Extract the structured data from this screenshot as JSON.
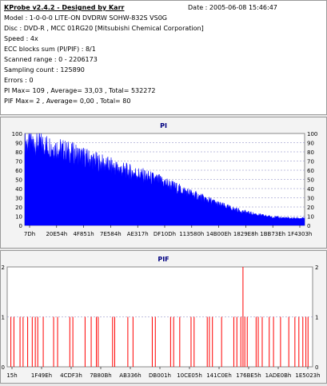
{
  "header": {
    "title": "KProbe v2.4.2 - Designed by Karr",
    "date": "Date : 2005-06-08 15:46:47",
    "lines": [
      "Model : 1-0-0-0 LITE-ON DVDRW SOHW-832S  VS0G",
      "Disc : DVD-R , MCC 01RG20  [Mitsubishi Chemical Corporation]",
      "Speed : 4x",
      "ECC blocks sum (PI/PIF) : 8/1",
      "Scanned range : 0 - 2206173",
      "Sampling count : 125890",
      "Errors : 0",
      "PI Max= 109 , Average= 33,03 , Total= 532272",
      "PIF Max= 2 , Average= 0,00 , Total= 80"
    ]
  },
  "chart_data": [
    {
      "type": "area",
      "title": "PI",
      "ylim": [
        0,
        100
      ],
      "y_ticks": [
        0,
        10,
        20,
        30,
        40,
        50,
        60,
        70,
        80,
        90,
        100
      ],
      "x_tick_labels": [
        "7Dh",
        "20E54h",
        "4F851h",
        "7E584h",
        "AE317h",
        "DF10Dh",
        "113580h",
        "14B00Eh",
        "1829E8h",
        "1BB73Eh",
        "1F4303h"
      ],
      "series_color": "#0000ff",
      "envelope": [
        {
          "x": 0.0,
          "y": 93
        },
        {
          "x": 0.05,
          "y": 92
        },
        {
          "x": 0.1,
          "y": 88
        },
        {
          "x": 0.15,
          "y": 83
        },
        {
          "x": 0.2,
          "y": 78
        },
        {
          "x": 0.25,
          "y": 72
        },
        {
          "x": 0.3,
          "y": 67
        },
        {
          "x": 0.35,
          "y": 62
        },
        {
          "x": 0.4,
          "y": 58
        },
        {
          "x": 0.45,
          "y": 53
        },
        {
          "x": 0.5,
          "y": 48
        },
        {
          "x": 0.55,
          "y": 41
        },
        {
          "x": 0.6,
          "y": 35
        },
        {
          "x": 0.65,
          "y": 29
        },
        {
          "x": 0.7,
          "y": 23
        },
        {
          "x": 0.75,
          "y": 18
        },
        {
          "x": 0.8,
          "y": 14
        },
        {
          "x": 0.85,
          "y": 11
        },
        {
          "x": 0.9,
          "y": 9
        },
        {
          "x": 0.95,
          "y": 8
        },
        {
          "x": 1.0,
          "y": 8
        }
      ]
    },
    {
      "type": "bar",
      "title": "PIF",
      "ylim": [
        0,
        2
      ],
      "y_ticks": [
        0,
        1,
        2
      ],
      "x_tick_labels": [
        "15h",
        "1F49Eh",
        "4CDF3h",
        "7B80Bh",
        "AB336h",
        "DB001h",
        "10CE05h",
        "141C0Eh",
        "176BE5h",
        "1ADE0Bh",
        "1E5023h"
      ],
      "series_color": "#ff0000",
      "spikes": [
        {
          "x": 0.012,
          "y": 1
        },
        {
          "x": 0.022,
          "y": 1
        },
        {
          "x": 0.042,
          "y": 1
        },
        {
          "x": 0.052,
          "y": 1
        },
        {
          "x": 0.067,
          "y": 1
        },
        {
          "x": 0.082,
          "y": 1
        },
        {
          "x": 0.092,
          "y": 1
        },
        {
          "x": 0.1,
          "y": 1
        },
        {
          "x": 0.118,
          "y": 1
        },
        {
          "x": 0.152,
          "y": 1
        },
        {
          "x": 0.165,
          "y": 1
        },
        {
          "x": 0.205,
          "y": 1
        },
        {
          "x": 0.215,
          "y": 1
        },
        {
          "x": 0.255,
          "y": 1
        },
        {
          "x": 0.275,
          "y": 1
        },
        {
          "x": 0.292,
          "y": 1
        },
        {
          "x": 0.298,
          "y": 1
        },
        {
          "x": 0.345,
          "y": 1
        },
        {
          "x": 0.352,
          "y": 1
        },
        {
          "x": 0.395,
          "y": 1
        },
        {
          "x": 0.412,
          "y": 1
        },
        {
          "x": 0.475,
          "y": 1
        },
        {
          "x": 0.485,
          "y": 1
        },
        {
          "x": 0.535,
          "y": 1
        },
        {
          "x": 0.545,
          "y": 1
        },
        {
          "x": 0.565,
          "y": 1
        },
        {
          "x": 0.602,
          "y": 1
        },
        {
          "x": 0.612,
          "y": 1
        },
        {
          "x": 0.655,
          "y": 1
        },
        {
          "x": 0.662,
          "y": 1
        },
        {
          "x": 0.672,
          "y": 1
        },
        {
          "x": 0.702,
          "y": 1
        },
        {
          "x": 0.742,
          "y": 1
        },
        {
          "x": 0.752,
          "y": 1
        },
        {
          "x": 0.765,
          "y": 1
        },
        {
          "x": 0.772,
          "y": 2
        },
        {
          "x": 0.778,
          "y": 1
        },
        {
          "x": 0.786,
          "y": 1
        },
        {
          "x": 0.815,
          "y": 1
        },
        {
          "x": 0.822,
          "y": 1
        },
        {
          "x": 0.835,
          "y": 1
        },
        {
          "x": 0.858,
          "y": 1
        },
        {
          "x": 0.872,
          "y": 1
        },
        {
          "x": 0.895,
          "y": 1
        },
        {
          "x": 0.922,
          "y": 1
        },
        {
          "x": 0.942,
          "y": 1
        },
        {
          "x": 0.955,
          "y": 1
        },
        {
          "x": 0.968,
          "y": 1
        },
        {
          "x": 0.978,
          "y": 1
        },
        {
          "x": 0.985,
          "y": 1
        }
      ]
    }
  ]
}
